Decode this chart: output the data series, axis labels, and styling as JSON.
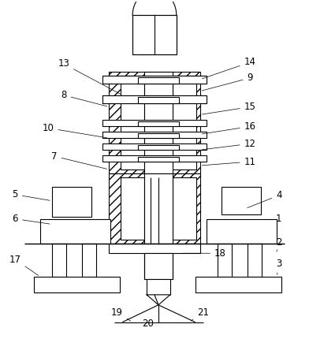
{
  "bg_color": "#ffffff",
  "line_color": "#000000",
  "fig_w": 3.92,
  "fig_h": 4.3,
  "dpi": 100
}
